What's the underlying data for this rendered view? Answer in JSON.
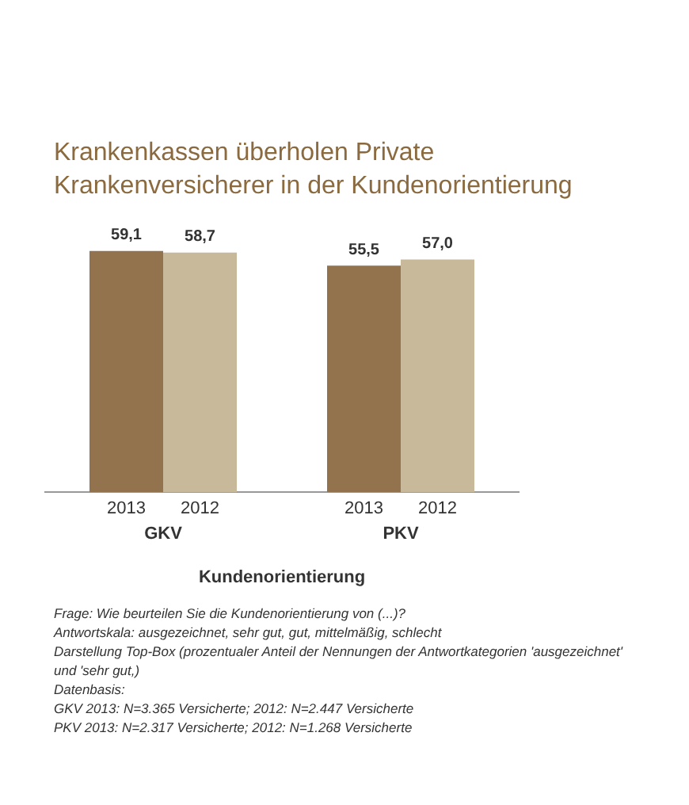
{
  "chart_data": {
    "type": "bar",
    "title": "Krankenkassen überholen Private Krankenversicherer in der Kundenorientierung",
    "xlabel": "Kundenorientierung",
    "categories": [
      "GKV",
      "PKV"
    ],
    "series": [
      {
        "name": "2013",
        "color": "#93734d",
        "values": [
          59.1,
          55.5
        ],
        "value_labels": [
          "59,1",
          "55,5"
        ]
      },
      {
        "name": "2012",
        "color": "#c9b99b",
        "values": [
          58.7,
          57.0
        ],
        "value_labels": [
          "58,7",
          "57,0"
        ]
      }
    ],
    "tick_labels": "x",
    "grid": false,
    "legend": false,
    "annotations": [
      "Frage: Wie beurteilen Sie die Kundenorientierung von (...)?",
      "Antwortskala: ausgezeichnet, sehr gut, gut, mittelmäßig, schlecht",
      "Darstellung Top-Box (prozentualer Anteil der Nennungen der Antwortkategorien 'ausgezeichnet' und 'sehr gut,)",
      "Datenbasis:",
      "GKV 2013: N=3.365 Versicherte; 2012: N=2.447 Versicherte",
      "PKV 2013: N=2.317 Versicherte; 2012: N=1.268 Versicherte"
    ]
  }
}
